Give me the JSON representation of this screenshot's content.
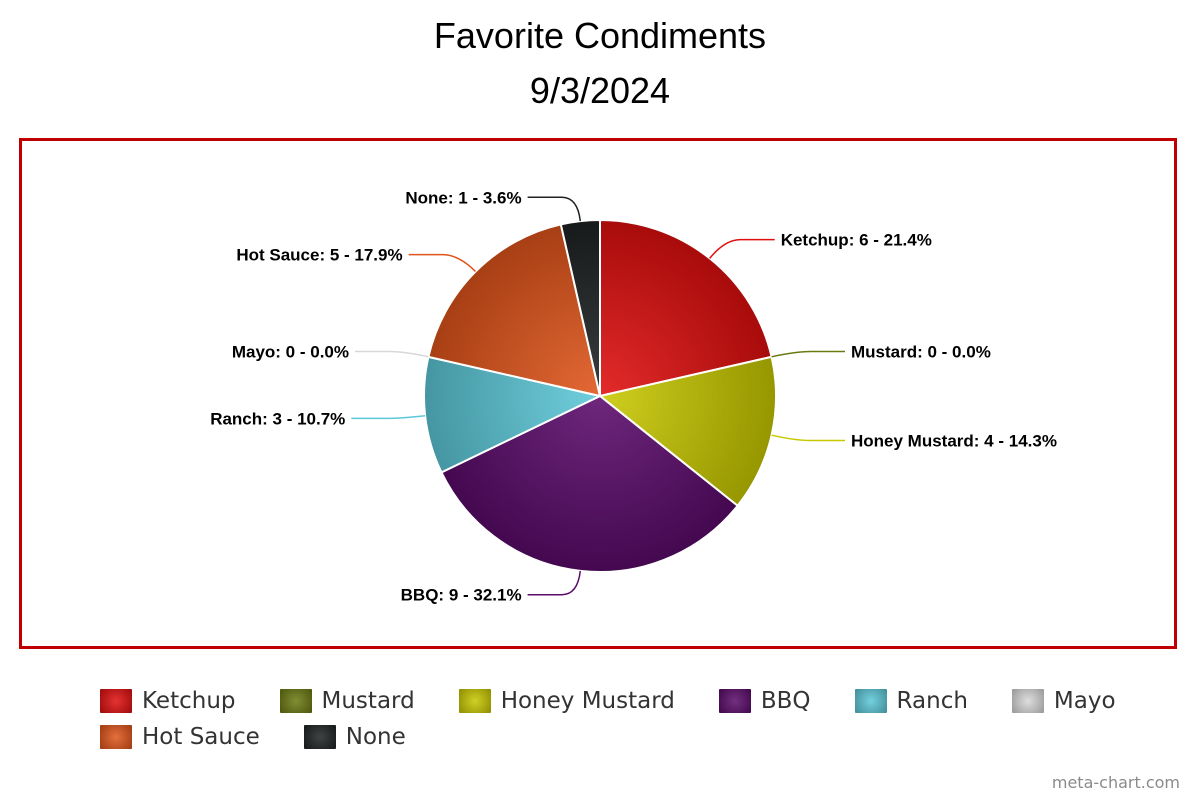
{
  "chart_data": {
    "type": "pie",
    "title": "Favorite Condiments",
    "subtitle": "9/3/2024",
    "slices": [
      {
        "name": "Ketchup",
        "value": 6,
        "percent": "21.4%",
        "label": "Ketchup: 6 - 21.4%",
        "color": "#e00e0e"
      },
      {
        "name": "Mustard",
        "value": 0,
        "percent": "0.0%",
        "label": "Mustard: 0 - 0.0%",
        "color": "#6b7a10"
      },
      {
        "name": "Honey Mustard",
        "value": 4,
        "percent": "14.3%",
        "label": "Honey Mustard: 4 - 14.3%",
        "color": "#c8c800"
      },
      {
        "name": "BBQ",
        "value": 9,
        "percent": "32.1%",
        "label": "BBQ: 9 - 32.1%",
        "color": "#5a0a6a"
      },
      {
        "name": "Ranch",
        "value": 3,
        "percent": "10.7%",
        "label": "Ranch: 3 - 10.7%",
        "color": "#5cc8d8"
      },
      {
        "name": "Mayo",
        "value": 0,
        "percent": "0.0%",
        "label": "Mayo: 0 - 0.0%",
        "color": "#d8d8d8"
      },
      {
        "name": "Hot Sauce",
        "value": 5,
        "percent": "17.9%",
        "label": "Hot Sauce: 5 - 17.9%",
        "color": "#e0541a"
      },
      {
        "name": "None",
        "value": 1,
        "percent": "3.6%",
        "label": "None: 1 - 3.6%",
        "color": "#1e2222"
      }
    ],
    "legend_placement": "bottom"
  },
  "credit": "meta-chart.com"
}
